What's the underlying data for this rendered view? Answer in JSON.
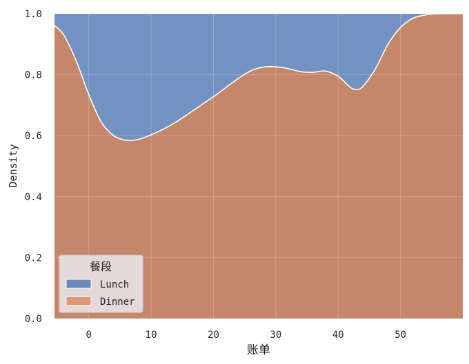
{
  "chart_data": {
    "type": "area",
    "stacked": "fill",
    "xlabel": "账单",
    "ylabel": "Density",
    "xlim": [
      -5.5,
      60
    ],
    "ylim": [
      0,
      1
    ],
    "x_ticks": [
      0,
      10,
      20,
      30,
      40,
      50
    ],
    "y_ticks": [
      0.0,
      0.2,
      0.4,
      0.6,
      0.8,
      1.0
    ],
    "y_tick_labels": [
      "0.0",
      "0.2",
      "0.4",
      "0.6",
      "0.8",
      "1.0"
    ],
    "grid": true,
    "legend": {
      "title": "餐段",
      "placement": "lower-left",
      "entries": [
        "Lunch",
        "Dinner"
      ]
    },
    "x": [
      -5.5,
      -4,
      -2,
      0,
      2,
      4,
      6,
      8,
      10,
      12,
      14,
      16,
      18,
      20,
      22,
      24,
      26,
      28,
      30,
      32,
      34,
      36,
      38,
      40,
      42,
      43,
      44,
      46,
      48,
      50,
      52,
      54,
      56,
      58,
      60
    ],
    "series": [
      {
        "name": "Dinner",
        "color": "#dd8452",
        "values": [
          0.962,
          0.93,
          0.845,
          0.735,
          0.645,
          0.6,
          0.585,
          0.588,
          0.603,
          0.622,
          0.645,
          0.672,
          0.7,
          0.728,
          0.758,
          0.788,
          0.813,
          0.825,
          0.826,
          0.82,
          0.81,
          0.808,
          0.812,
          0.795,
          0.758,
          0.752,
          0.762,
          0.82,
          0.9,
          0.955,
          0.985,
          0.996,
          1.0,
          1.0,
          1.0
        ]
      },
      {
        "name": "Lunch",
        "color": "#4c72b0",
        "values": [
          0.038,
          0.07,
          0.155,
          0.265,
          0.355,
          0.4,
          0.415,
          0.412,
          0.397,
          0.378,
          0.355,
          0.328,
          0.3,
          0.272,
          0.242,
          0.212,
          0.187,
          0.175,
          0.174,
          0.18,
          0.19,
          0.192,
          0.188,
          0.205,
          0.242,
          0.248,
          0.238,
          0.18,
          0.1,
          0.045,
          0.015,
          0.004,
          0.0,
          0.0,
          0.0
        ]
      }
    ]
  }
}
